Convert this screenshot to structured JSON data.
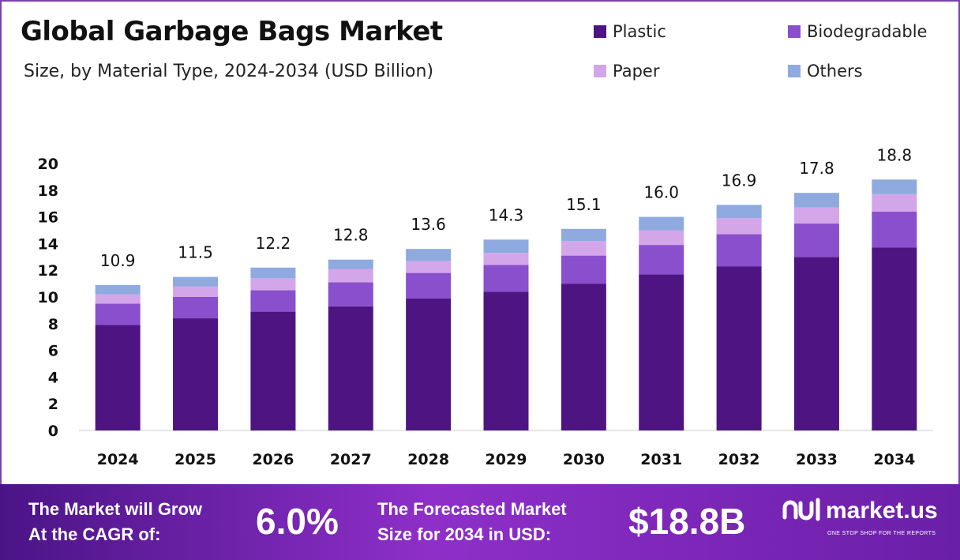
{
  "chart_data": {
    "type": "bar",
    "stacked": true,
    "title": "Global Garbage Bags Market",
    "subtitle": "Size, by Material Type, 2024-2034 (USD Billion)",
    "categories": [
      "2024",
      "2025",
      "2026",
      "2027",
      "2028",
      "2029",
      "2030",
      "2031",
      "2032",
      "2033",
      "2034"
    ],
    "series": [
      {
        "name": "Plastic",
        "color": "#4e1582",
        "values": [
          7.9,
          8.4,
          8.9,
          9.3,
          9.9,
          10.4,
          11.0,
          11.7,
          12.3,
          13.0,
          13.7
        ]
      },
      {
        "name": "Biodegradable",
        "color": "#8a4fcc",
        "values": [
          1.6,
          1.6,
          1.6,
          1.8,
          1.9,
          2.0,
          2.1,
          2.2,
          2.4,
          2.5,
          2.7
        ]
      },
      {
        "name": "Paper",
        "color": "#d3a6ea",
        "values": [
          0.7,
          0.8,
          0.9,
          1.0,
          0.9,
          0.9,
          1.1,
          1.1,
          1.2,
          1.2,
          1.3
        ]
      },
      {
        "name": "Others",
        "color": "#8eaadf",
        "values": [
          0.7,
          0.7,
          0.8,
          0.7,
          0.9,
          1.0,
          0.9,
          1.0,
          1.0,
          1.1,
          1.1
        ]
      }
    ],
    "totals": [
      "10.9",
      "11.5",
      "12.2",
      "12.8",
      "13.6",
      "14.3",
      "15.1",
      "16.0",
      "16.9",
      "17.8",
      "18.8"
    ],
    "ylim": [
      0,
      20
    ],
    "yticks": [
      "0",
      "2",
      "4",
      "6",
      "8",
      "10",
      "12",
      "14",
      "16",
      "18",
      "20"
    ],
    "grid": false,
    "legend_position": "top-right"
  },
  "footer": {
    "cagr_label_1": "The Market will Grow",
    "cagr_label_2": "At the CAGR of:",
    "cagr_value": "6.0%",
    "size_label_1": "The Forecasted Market",
    "size_label_2": "Size for 2034 in USD:",
    "size_value": "$18.8B",
    "brand": "market.us",
    "tagline": "ONE STOP SHOP FOR THE REPORTS"
  }
}
